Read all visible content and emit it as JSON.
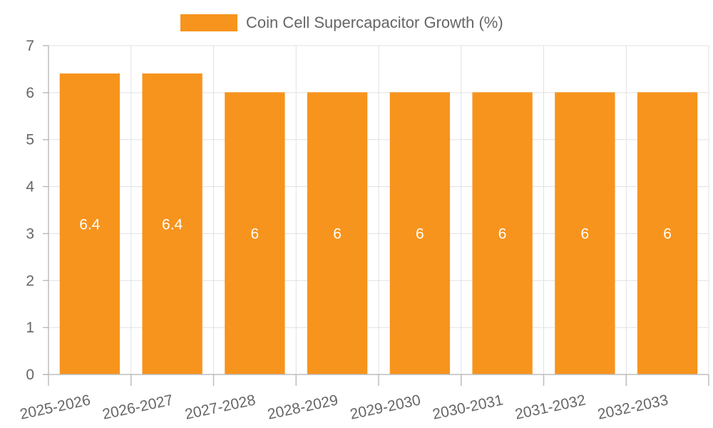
{
  "colors": {
    "bar": "#f7941d",
    "bar_border": "#f7941d",
    "data_label": "#ffffff"
  },
  "chart_data": {
    "type": "bar",
    "title": "",
    "categories": [
      "2025-2026",
      "2026-2027",
      "2027-2028",
      "2028-2029",
      "2029-2030",
      "2030-2031",
      "2031-2032",
      "2032-2033"
    ],
    "series": [
      {
        "name": "Coin Cell Supercapacitor Growth (%)",
        "values": [
          6.4,
          6.4,
          6,
          6,
          6,
          6,
          6,
          6
        ],
        "data_labels": [
          "6.4",
          "6.4",
          "6",
          "6",
          "6",
          "6",
          "6",
          "6"
        ]
      }
    ],
    "xlabel": "",
    "ylabel": "",
    "ylim": [
      0,
      7
    ],
    "yticks": [
      0,
      1,
      2,
      3,
      4,
      5,
      6,
      7
    ],
    "grid": true,
    "legend_position": "top-center"
  }
}
